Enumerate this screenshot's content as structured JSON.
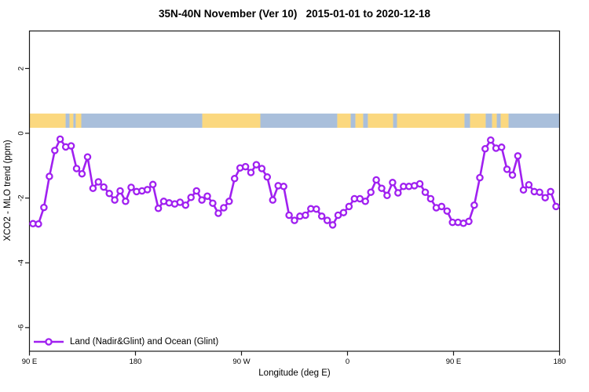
{
  "chart_data": {
    "type": "line",
    "title": "35N-40N November (Ver 10)   2015-01-01 to 2020-12-18",
    "xlabel": "Longitude (deg E)",
    "ylabel": "XCO2 - MLO trend (ppm)",
    "grid": "off",
    "x_axis": {
      "range_deg": [
        90,
        540
      ],
      "note": "longitude wraps eastward: 90E -> 180 -> 90W -> 0 -> 90E -> 180",
      "ticks": [
        {
          "pos": 90,
          "label": "90 E"
        },
        {
          "pos": 180,
          "label": "180"
        },
        {
          "pos": 270,
          "label": "90 W"
        },
        {
          "pos": 360,
          "label": "0"
        },
        {
          "pos": 450,
          "label": "90 E"
        },
        {
          "pos": 540,
          "label": "180"
        }
      ]
    },
    "y_axis": {
      "range_ppm": [
        -6.73,
        3.16
      ],
      "ticks": [
        {
          "pos": 2,
          "label": "2"
        },
        {
          "pos": 0,
          "label": "0"
        },
        {
          "pos": -2,
          "label": "-2"
        },
        {
          "pos": -4,
          "label": "-4"
        },
        {
          "pos": -6,
          "label": "-6"
        }
      ]
    },
    "series": [
      {
        "name": "Land (Nadir&Glint) and Ocean (Glint)",
        "color": "#A020F0",
        "marker": "open-circle",
        "marker_fill": "#ffffff",
        "x_deg": [
          93.0,
          97.6,
          102.3,
          106.9,
          111.5,
          116.1,
          120.8,
          125.4,
          130.0,
          134.6,
          139.3,
          143.9,
          148.5,
          153.1,
          157.8,
          162.4,
          167.0,
          171.6,
          176.3,
          180.9,
          185.5,
          190.1,
          194.8,
          199.4,
          204.0,
          208.6,
          213.3,
          217.9,
          222.5,
          227.1,
          231.8,
          236.4,
          241.0,
          245.6,
          250.3,
          254.9,
          259.5,
          264.1,
          268.8,
          273.4,
          278.0,
          282.6,
          287.3,
          291.9,
          296.5,
          301.1,
          305.8,
          310.4,
          315.0,
          319.6,
          324.3,
          328.9,
          333.5,
          338.1,
          342.8,
          347.4,
          352.0,
          356.6,
          361.3,
          365.9,
          370.5,
          375.1,
          379.8,
          384.4,
          389.0,
          393.6,
          398.3,
          402.9,
          407.5,
          412.1,
          416.8,
          421.4,
          426.0,
          430.6,
          435.3,
          439.9,
          444.5,
          449.1,
          453.8,
          458.4,
          463.0,
          467.6,
          472.3,
          476.9,
          481.5,
          486.1,
          490.8,
          495.4,
          500.0,
          504.6,
          509.3,
          513.9,
          518.5,
          523.1,
          527.8,
          532.4,
          537.0
        ],
        "y_ppm": [
          -2.79,
          -2.8,
          -2.29,
          -1.33,
          -0.53,
          -0.18,
          -0.42,
          -0.39,
          -1.09,
          -1.25,
          -0.73,
          -1.7,
          -1.5,
          -1.66,
          -1.86,
          -2.06,
          -1.78,
          -2.1,
          -1.67,
          -1.8,
          -1.78,
          -1.74,
          -1.58,
          -2.32,
          -2.1,
          -2.15,
          -2.18,
          -2.13,
          -2.22,
          -1.98,
          -1.78,
          -2.06,
          -1.94,
          -2.16,
          -2.47,
          -2.3,
          -2.1,
          -1.4,
          -1.07,
          -1.03,
          -1.21,
          -0.97,
          -1.09,
          -1.35,
          -2.06,
          -1.62,
          -1.64,
          -2.53,
          -2.69,
          -2.56,
          -2.53,
          -2.33,
          -2.34,
          -2.56,
          -2.69,
          -2.83,
          -2.53,
          -2.45,
          -2.26,
          -2.02,
          -2.02,
          -2.1,
          -1.82,
          -1.44,
          -1.7,
          -1.92,
          -1.52,
          -1.84,
          -1.64,
          -1.64,
          -1.62,
          -1.56,
          -1.82,
          -2.02,
          -2.3,
          -2.26,
          -2.4,
          -2.75,
          -2.75,
          -2.78,
          -2.72,
          -2.22,
          -1.37,
          -0.48,
          -0.21,
          -0.46,
          -0.43,
          -1.11,
          -1.29,
          -0.7,
          -1.75,
          -1.59,
          -1.8,
          -1.82,
          -1.99,
          -1.8,
          -2.26
        ]
      }
    ],
    "map_strip": {
      "description": "land/ocean map band for latitude zone 35N-40N drawn near y=0",
      "y_ppm_range": [
        0.17,
        0.61
      ],
      "land_color": "#FBD87F",
      "ocean_color": "#A9BFDB",
      "segments": [
        {
          "from": 90.0,
          "to": 120.7,
          "type": "land"
        },
        {
          "from": 120.7,
          "to": 124.0,
          "type": "ocean"
        },
        {
          "from": 124.0,
          "to": 127.3,
          "type": "land"
        },
        {
          "from": 127.3,
          "to": 129.3,
          "type": "ocean"
        },
        {
          "from": 129.3,
          "to": 134.0,
          "type": "land"
        },
        {
          "from": 134.0,
          "to": 236.7,
          "type": "ocean"
        },
        {
          "from": 236.7,
          "to": 286.0,
          "type": "land"
        },
        {
          "from": 286.0,
          "to": 351.3,
          "type": "ocean"
        },
        {
          "from": 351.3,
          "to": 362.7,
          "type": "land"
        },
        {
          "from": 362.7,
          "to": 366.7,
          "type": "ocean"
        },
        {
          "from": 366.7,
          "to": 373.3,
          "type": "land"
        },
        {
          "from": 373.3,
          "to": 377.3,
          "type": "ocean"
        },
        {
          "from": 377.3,
          "to": 398.7,
          "type": "land"
        },
        {
          "from": 398.7,
          "to": 402.0,
          "type": "ocean"
        },
        {
          "from": 402.0,
          "to": 459.3,
          "type": "land"
        },
        {
          "from": 459.3,
          "to": 464.0,
          "type": "ocean"
        },
        {
          "from": 464.0,
          "to": 477.3,
          "type": "land"
        },
        {
          "from": 477.3,
          "to": 482.7,
          "type": "ocean"
        },
        {
          "from": 482.7,
          "to": 486.7,
          "type": "land"
        },
        {
          "from": 486.7,
          "to": 490.0,
          "type": "ocean"
        },
        {
          "from": 490.0,
          "to": 496.7,
          "type": "land"
        },
        {
          "from": 496.7,
          "to": 540.0,
          "type": "ocean"
        }
      ]
    },
    "legend": {
      "position": "bottom-left",
      "entries": [
        {
          "label": "Land (Nadir&Glint) and Ocean (Glint)",
          "color": "#A020F0"
        }
      ]
    },
    "axis_color": "#1a1a1a"
  }
}
